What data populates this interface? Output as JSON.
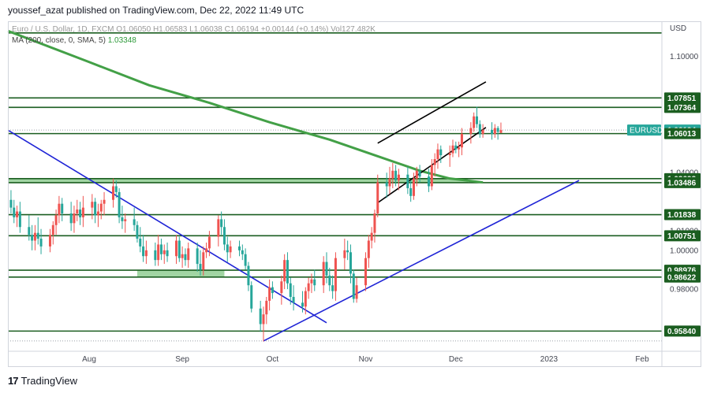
{
  "header": "youssef_azat published on TradingView.com, Dec 22, 2022 11:49 UTC",
  "legend": {
    "line1": "Euro / U.S. Dollar, 1D, FXCM  O1.06050  H1.06583  L1.06038  C1.06194  +0.00144 (+0.14%)  Vol127.482K",
    "ma_label": "MA (200, close, 0, SMA, 5)",
    "ma_value": "1.03348"
  },
  "footer": {
    "logo": "17",
    "brand": "TradingView"
  },
  "colors": {
    "up": "#ef5350",
    "down": "#26a69a",
    "level": "#1b5e20",
    "ma": "#43a047",
    "trend": "#1f24d6",
    "channel": "#000000",
    "zone": "#81c784"
  },
  "chart_data": {
    "type": "candlestick",
    "symbol": "EURUSD",
    "currency": "USD",
    "ylim": [
      0.948,
      1.118
    ],
    "x_axis_labels": [
      {
        "label": "Aug",
        "day": 0
      },
      {
        "label": "Sep",
        "day": 31
      },
      {
        "label": "Oct",
        "day": 61
      },
      {
        "label": "Nov",
        "day": 92
      },
      {
        "label": "Dec",
        "day": 122
      },
      {
        "label": "2023",
        "day": 153
      },
      {
        "label": "Feb",
        "day": 184
      }
    ],
    "y_axis_ticks": [
      {
        "label": "1.10000",
        "value": 1.1
      },
      {
        "label": "1.04000",
        "value": 1.04
      },
      {
        "label": "1.01000",
        "value": 1.01
      },
      {
        "label": "1.00000",
        "value": 1.0
      },
      {
        "label": "0.98000",
        "value": 0.98
      }
    ],
    "horizontal_levels": [
      1.07851,
      1.07364,
      1.06013,
      1.03693,
      1.03486,
      1.01838,
      1.00751,
      0.98976,
      0.98622,
      0.9584
    ],
    "price_labels": [
      {
        "label": "1.07851",
        "value": 1.07851
      },
      {
        "label": "1.07364",
        "value": 1.07364
      },
      {
        "label": "1.06194",
        "value": 1.06194,
        "tag": "EURUSD"
      },
      {
        "label": "1.06013",
        "value": 1.06013
      },
      {
        "label": "1.03693",
        "value": 1.03693
      },
      {
        "label": "1.03486",
        "value": 1.03486
      },
      {
        "label": "1.01838",
        "value": 1.01838
      },
      {
        "label": "1.00751",
        "value": 1.00751
      },
      {
        "label": "0.98976",
        "value": 0.98976
      },
      {
        "label": "0.98622",
        "value": 0.98622
      },
      {
        "label": "0.95840",
        "value": 0.9584
      }
    ],
    "zones": [
      {
        "from_day": -27,
        "to_day": 126,
        "low": 1.03486,
        "high": 1.03693
      },
      {
        "from_day": 16,
        "to_day": 45,
        "low": 0.98622,
        "high": 0.98976
      }
    ],
    "ma_line": [
      [
        -27,
        1.113
      ],
      [
        0,
        1.097
      ],
      [
        20,
        1.085
      ],
      [
        40,
        1.076
      ],
      [
        60,
        1.066
      ],
      [
        80,
        1.057
      ],
      [
        95,
        1.049
      ],
      [
        110,
        1.041
      ],
      [
        120,
        1.037
      ],
      [
        131,
        1.035
      ]
    ],
    "trend_lines": [
      {
        "role": "descending",
        "points": [
          [
            -27,
            1.0619
          ],
          [
            79,
            0.9627
          ]
        ]
      },
      {
        "role": "ascending",
        "points": [
          [
            58,
            0.9533
          ],
          [
            163,
            1.036
          ]
        ]
      }
    ],
    "channel_lines": [
      {
        "role": "upper",
        "points": [
          [
            96,
            1.0552
          ],
          [
            132,
            1.0868
          ]
        ]
      },
      {
        "role": "lower",
        "points": [
          [
            96,
            1.0245
          ],
          [
            132,
            1.0633
          ]
        ]
      }
    ],
    "candles": [
      {
        "d": -26,
        "o": 1.026,
        "h": 1.031,
        "l": 1.019,
        "c": 1.022
      },
      {
        "d": -25,
        "o": 1.022,
        "h": 1.026,
        "l": 1.014,
        "c": 1.017
      },
      {
        "d": -24,
        "o": 1.017,
        "h": 1.023,
        "l": 1.012,
        "c": 1.02
      },
      {
        "d": -23,
        "o": 1.02,
        "h": 1.025,
        "l": 1.009,
        "c": 1.012
      },
      {
        "d": -20,
        "o": 1.012,
        "h": 1.018,
        "l": 1.005,
        "c": 1.008
      },
      {
        "d": -19,
        "o": 1.008,
        "h": 1.013,
        "l": 1.0,
        "c": 1.005
      },
      {
        "d": -18,
        "o": 1.005,
        "h": 1.013,
        "l": 1.0,
        "c": 1.009
      },
      {
        "d": -17,
        "o": 1.009,
        "h": 1.017,
        "l": 1.003,
        "c": 1.006
      },
      {
        "d": -16,
        "o": 1.006,
        "h": 1.011,
        "l": 0.998,
        "c": 1.002
      },
      {
        "d": -13,
        "o": 1.002,
        "h": 1.011,
        "l": 0.999,
        "c": 1.008
      },
      {
        "d": -12,
        "o": 1.008,
        "h": 1.015,
        "l": 1.003,
        "c": 1.013
      },
      {
        "d": -11,
        "o": 1.013,
        "h": 1.021,
        "l": 1.008,
        "c": 1.018
      },
      {
        "d": -10,
        "o": 1.018,
        "h": 1.028,
        "l": 1.014,
        "c": 1.024
      },
      {
        "d": -9,
        "o": 1.024,
        "h": 1.027,
        "l": 1.015,
        "c": 1.019
      },
      {
        "d": -6,
        "o": 1.019,
        "h": 1.025,
        "l": 1.01,
        "c": 1.014
      },
      {
        "d": -5,
        "o": 1.014,
        "h": 1.023,
        "l": 1.009,
        "c": 1.019
      },
      {
        "d": -4,
        "o": 1.019,
        "h": 1.026,
        "l": 1.015,
        "c": 1.021
      },
      {
        "d": -3,
        "o": 1.021,
        "h": 1.025,
        "l": 1.013,
        "c": 1.017
      },
      {
        "d": -2,
        "o": 1.017,
        "h": 1.028,
        "l": 1.012,
        "c": 1.022
      },
      {
        "d": 1,
        "o": 1.022,
        "h": 1.029,
        "l": 1.016,
        "c": 1.025
      },
      {
        "d": 2,
        "o": 1.025,
        "h": 1.027,
        "l": 1.014,
        "c": 1.018
      },
      {
        "d": 3,
        "o": 1.018,
        "h": 1.024,
        "l": 1.012,
        "c": 1.02
      },
      {
        "d": 4,
        "o": 1.02,
        "h": 1.026,
        "l": 1.016,
        "c": 1.024
      },
      {
        "d": 5,
        "o": 1.024,
        "h": 1.03,
        "l": 1.018,
        "c": 1.026
      },
      {
        "d": 8,
        "o": 1.026,
        "h": 1.037,
        "l": 1.022,
        "c": 1.033
      },
      {
        "d": 9,
        "o": 1.033,
        "h": 1.036,
        "l": 1.027,
        "c": 1.03
      },
      {
        "d": 10,
        "o": 1.03,
        "h": 1.032,
        "l": 1.014,
        "c": 1.017
      },
      {
        "d": 11,
        "o": 1.017,
        "h": 1.023,
        "l": 1.011,
        "c": 1.015
      },
      {
        "d": 12,
        "o": 1.015,
        "h": 1.019,
        "l": 1.009,
        "c": 1.016
      },
      {
        "d": 15,
        "o": 1.016,
        "h": 1.022,
        "l": 1.01,
        "c": 1.013
      },
      {
        "d": 16,
        "o": 1.013,
        "h": 1.015,
        "l": 1.004,
        "c": 1.006
      },
      {
        "d": 17,
        "o": 1.006,
        "h": 1.012,
        "l": 0.999,
        "c": 1.002
      },
      {
        "d": 18,
        "o": 1.002,
        "h": 1.008,
        "l": 0.994,
        "c": 0.997
      },
      {
        "d": 19,
        "o": 0.997,
        "h": 1.005,
        "l": 0.993,
        "c": 1.0
      },
      {
        "d": 22,
        "o": 1.0,
        "h": 1.004,
        "l": 0.992,
        "c": 0.995
      },
      {
        "d": 23,
        "o": 0.995,
        "h": 1.008,
        "l": 0.992,
        "c": 1.003
      },
      {
        "d": 24,
        "o": 1.003,
        "h": 1.006,
        "l": 0.995,
        "c": 0.998
      },
      {
        "d": 25,
        "o": 0.998,
        "h": 1.003,
        "l": 0.993,
        "c": 1.0
      },
      {
        "d": 26,
        "o": 1.0,
        "h": 1.004,
        "l": 0.994,
        "c": 0.997
      },
      {
        "d": 29,
        "o": 0.997,
        "h": 1.008,
        "l": 0.993,
        "c": 1.005
      },
      {
        "d": 30,
        "o": 1.005,
        "h": 1.007,
        "l": 0.994,
        "c": 0.996
      },
      {
        "d": 31,
        "o": 0.996,
        "h": 1.002,
        "l": 0.991,
        "c": 0.998
      },
      {
        "d": 32,
        "o": 0.998,
        "h": 1.001,
        "l": 0.992,
        "c": 0.995
      },
      {
        "d": 33,
        "o": 0.995,
        "h": 1.004,
        "l": 0.991,
        "c": 1.001
      },
      {
        "d": 36,
        "o": 1.001,
        "h": 1.004,
        "l": 0.989,
        "c": 0.993
      },
      {
        "d": 37,
        "o": 0.993,
        "h": 1.0,
        "l": 0.987,
        "c": 0.99
      },
      {
        "d": 38,
        "o": 0.99,
        "h": 1.002,
        "l": 0.987,
        "c": 0.999
      },
      {
        "d": 39,
        "o": 0.999,
        "h": 1.004,
        "l": 0.996,
        "c": 1.001
      },
      {
        "d": 40,
        "o": 1.001,
        "h": 1.01,
        "l": 0.997,
        "c": 1.007
      },
      {
        "d": 43,
        "o": 1.007,
        "h": 1.018,
        "l": 1.002,
        "c": 1.016
      },
      {
        "d": 44,
        "o": 1.016,
        "h": 1.02,
        "l": 1.008,
        "c": 1.012
      },
      {
        "d": 45,
        "o": 1.012,
        "h": 1.016,
        "l": 1.0,
        "c": 1.003
      },
      {
        "d": 46,
        "o": 1.003,
        "h": 1.007,
        "l": 0.994,
        "c": 0.999
      },
      {
        "d": 47,
        "o": 0.999,
        "h": 1.005,
        "l": 0.996,
        "c": 1.002
      },
      {
        "d": 50,
        "o": 1.002,
        "h": 1.005,
        "l": 0.997,
        "c": 1.0
      },
      {
        "d": 51,
        "o": 1.0,
        "h": 1.003,
        "l": 0.995,
        "c": 0.998
      },
      {
        "d": 52,
        "o": 0.998,
        "h": 1.001,
        "l": 0.99,
        "c": 0.992
      },
      {
        "d": 53,
        "o": 0.992,
        "h": 0.994,
        "l": 0.979,
        "c": 0.982
      },
      {
        "d": 54,
        "o": 0.982,
        "h": 0.984,
        "l": 0.968,
        "c": 0.97
      },
      {
        "d": 57,
        "o": 0.97,
        "h": 0.974,
        "l": 0.958,
        "c": 0.962
      },
      {
        "d": 58,
        "o": 0.962,
        "h": 0.971,
        "l": 0.953,
        "c": 0.967
      },
      {
        "d": 59,
        "o": 0.967,
        "h": 0.976,
        "l": 0.962,
        "c": 0.974
      },
      {
        "d": 60,
        "o": 0.974,
        "h": 0.985,
        "l": 0.969,
        "c": 0.981
      },
      {
        "d": 61,
        "o": 0.981,
        "h": 0.984,
        "l": 0.975,
        "c": 0.978
      },
      {
        "d": 64,
        "o": 0.978,
        "h": 0.987,
        "l": 0.972,
        "c": 0.984
      },
      {
        "d": 65,
        "o": 0.984,
        "h": 0.998,
        "l": 0.98,
        "c": 0.995
      },
      {
        "d": 66,
        "o": 0.995,
        "h": 0.999,
        "l": 0.98,
        "c": 0.983
      },
      {
        "d": 67,
        "o": 0.983,
        "h": 0.986,
        "l": 0.972,
        "c": 0.976
      },
      {
        "d": 68,
        "o": 0.976,
        "h": 0.982,
        "l": 0.969,
        "c": 0.973
      },
      {
        "d": 71,
        "o": 0.973,
        "h": 0.979,
        "l": 0.968,
        "c": 0.971
      },
      {
        "d": 72,
        "o": 0.971,
        "h": 0.981,
        "l": 0.967,
        "c": 0.979
      },
      {
        "d": 73,
        "o": 0.979,
        "h": 0.986,
        "l": 0.975,
        "c": 0.983
      },
      {
        "d": 74,
        "o": 0.983,
        "h": 0.988,
        "l": 0.978,
        "c": 0.985
      },
      {
        "d": 75,
        "o": 0.985,
        "h": 0.99,
        "l": 0.979,
        "c": 0.982
      },
      {
        "d": 78,
        "o": 0.982,
        "h": 0.997,
        "l": 0.978,
        "c": 0.994
      },
      {
        "d": 79,
        "o": 0.994,
        "h": 0.999,
        "l": 0.983,
        "c": 0.987
      },
      {
        "d": 80,
        "o": 0.987,
        "h": 0.991,
        "l": 0.979,
        "c": 0.982
      },
      {
        "d": 81,
        "o": 0.982,
        "h": 0.987,
        "l": 0.975,
        "c": 0.979
      },
      {
        "d": 82,
        "o": 0.979,
        "h": 0.999,
        "l": 0.974,
        "c": 0.996
      },
      {
        "d": 85,
        "o": 0.996,
        "h": 1.006,
        "l": 0.99,
        "c": 1.0
      },
      {
        "d": 86,
        "o": 1.0,
        "h": 1.005,
        "l": 0.995,
        "c": 0.999
      },
      {
        "d": 87,
        "o": 0.999,
        "h": 1.003,
        "l": 0.983,
        "c": 0.988
      },
      {
        "d": 88,
        "o": 0.988,
        "h": 0.99,
        "l": 0.973,
        "c": 0.975
      },
      {
        "d": 89,
        "o": 0.975,
        "h": 0.986,
        "l": 0.973,
        "c": 0.982
      },
      {
        "d": 92,
        "o": 0.982,
        "h": 0.999,
        "l": 0.979,
        "c": 0.996
      },
      {
        "d": 93,
        "o": 0.996,
        "h": 1.008,
        "l": 0.991,
        "c": 1.005
      },
      {
        "d": 94,
        "o": 1.005,
        "h": 1.012,
        "l": 1.001,
        "c": 1.009
      },
      {
        "d": 95,
        "o": 1.009,
        "h": 1.021,
        "l": 1.004,
        "c": 1.019
      },
      {
        "d": 96,
        "o": 1.019,
        "h": 1.039,
        "l": 1.017,
        "c": 1.035
      },
      {
        "d": 99,
        "o": 1.035,
        "h": 1.04,
        "l": 1.027,
        "c": 1.033
      },
      {
        "d": 100,
        "o": 1.033,
        "h": 1.043,
        "l": 1.029,
        "c": 1.037
      },
      {
        "d": 101,
        "o": 1.037,
        "h": 1.045,
        "l": 1.032,
        "c": 1.041
      },
      {
        "d": 102,
        "o": 1.041,
        "h": 1.044,
        "l": 1.033,
        "c": 1.036
      },
      {
        "d": 103,
        "o": 1.036,
        "h": 1.042,
        "l": 1.031,
        "c": 1.039
      },
      {
        "d": 106,
        "o": 1.039,
        "h": 1.043,
        "l": 1.029,
        "c": 1.032
      },
      {
        "d": 107,
        "o": 1.032,
        "h": 1.036,
        "l": 1.025,
        "c": 1.028
      },
      {
        "d": 108,
        "o": 1.028,
        "h": 1.04,
        "l": 1.026,
        "c": 1.037
      },
      {
        "d": 109,
        "o": 1.037,
        "h": 1.043,
        "l": 1.033,
        "c": 1.041
      },
      {
        "d": 110,
        "o": 1.041,
        "h": 1.044,
        "l": 1.035,
        "c": 1.038
      },
      {
        "d": 113,
        "o": 1.038,
        "h": 1.042,
        "l": 1.03,
        "c": 1.033
      },
      {
        "d": 114,
        "o": 1.033,
        "h": 1.047,
        "l": 1.031,
        "c": 1.044
      },
      {
        "d": 115,
        "o": 1.044,
        "h": 1.05,
        "l": 1.038,
        "c": 1.047
      },
      {
        "d": 116,
        "o": 1.047,
        "h": 1.055,
        "l": 1.042,
        "c": 1.052
      },
      {
        "d": 117,
        "o": 1.052,
        "h": 1.054,
        "l": 1.045,
        "c": 1.049
      },
      {
        "d": 120,
        "o": 1.049,
        "h": 1.054,
        "l": 1.043,
        "c": 1.05
      },
      {
        "d": 121,
        "o": 1.05,
        "h": 1.057,
        "l": 1.048,
        "c": 1.054
      },
      {
        "d": 122,
        "o": 1.054,
        "h": 1.056,
        "l": 1.05,
        "c": 1.052
      },
      {
        "d": 123,
        "o": 1.052,
        "h": 1.056,
        "l": 1.048,
        "c": 1.053
      },
      {
        "d": 124,
        "o": 1.053,
        "h": 1.063,
        "l": 1.049,
        "c": 1.06
      },
      {
        "d": 127,
        "o": 1.06,
        "h": 1.066,
        "l": 1.055,
        "c": 1.063
      },
      {
        "d": 128,
        "o": 1.063,
        "h": 1.071,
        "l": 1.061,
        "c": 1.069
      },
      {
        "d": 129,
        "o": 1.069,
        "h": 1.074,
        "l": 1.063,
        "c": 1.065
      },
      {
        "d": 130,
        "o": 1.065,
        "h": 1.067,
        "l": 1.058,
        "c": 1.06
      },
      {
        "d": 131,
        "o": 1.06,
        "h": 1.065,
        "l": 1.058,
        "c": 1.062
      },
      {
        "d": 134,
        "o": 1.062,
        "h": 1.066,
        "l": 1.057,
        "c": 1.06
      },
      {
        "d": 135,
        "o": 1.06,
        "h": 1.065,
        "l": 1.058,
        "c": 1.063
      },
      {
        "d": 136,
        "o": 1.063,
        "h": 1.064,
        "l": 1.057,
        "c": 1.061
      },
      {
        "d": 137,
        "o": 1.0605,
        "h": 1.06583,
        "l": 1.06038,
        "c": 1.06194
      }
    ]
  }
}
